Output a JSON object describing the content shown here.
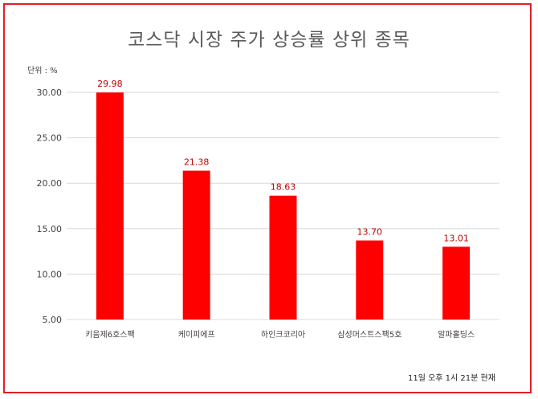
{
  "chart_data": {
    "type": "bar",
    "title": "코스닥 시장 주가 상승률 상위 종목",
    "unit_label": "단위 : %",
    "categories": [
      "키움제6호스팩",
      "케이피에프",
      "하인크코리아",
      "삼성머스트스팩5호",
      "알파홀딩스"
    ],
    "values": [
      29.98,
      21.38,
      18.63,
      13.7,
      13.01
    ],
    "value_labels": [
      "29.98",
      "21.38",
      "18.63",
      "13.70",
      "13.01"
    ],
    "ylim": [
      5,
      30
    ],
    "yticks": [
      "5.00",
      "10.00",
      "15.00",
      "20.00",
      "25.00",
      "30.00"
    ],
    "ytick_values": [
      5,
      10,
      15,
      20,
      25,
      30
    ],
    "grid": true,
    "footnote": "11일 오후 1시 21분 현재",
    "colors": {
      "bar": "#ff0000",
      "label": "#c00000",
      "frame": "#e31e24",
      "grid": "#d9d9d9"
    }
  }
}
